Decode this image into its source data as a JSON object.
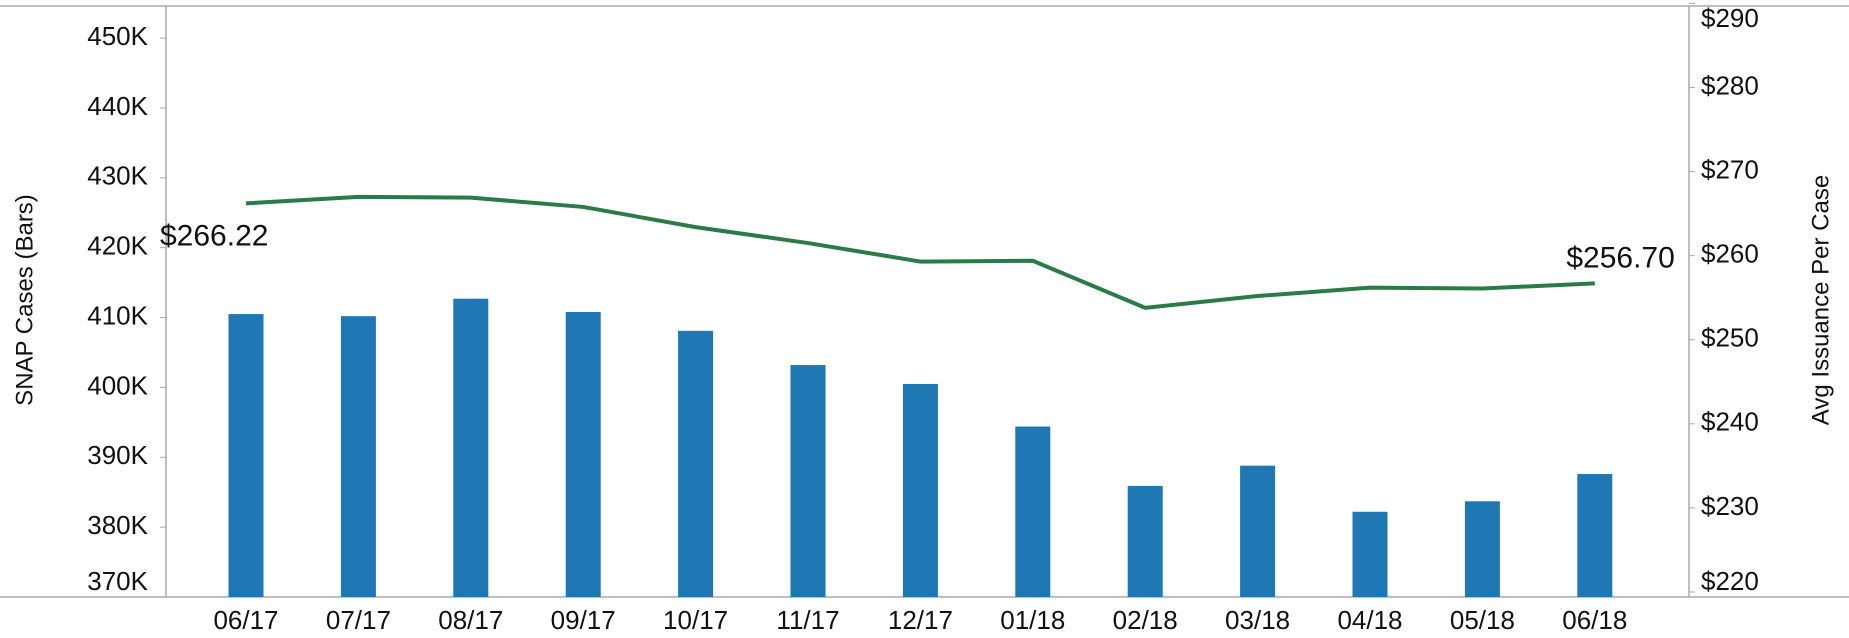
{
  "chart_data": {
    "type": "bar-line",
    "categories": [
      "06/17",
      "07/17",
      "08/17",
      "09/17",
      "10/17",
      "11/17",
      "12/17",
      "01/18",
      "02/18",
      "03/18",
      "04/18",
      "05/18",
      "06/18"
    ],
    "ylabel": "SNAP Cases (Bars)",
    "y2label": "Avg Issuance Per Case",
    "ylim": [
      370000,
      454600
    ],
    "yticks": [
      {
        "value": 370000,
        "label": "370K"
      },
      {
        "value": 380000,
        "label": "380K"
      },
      {
        "value": 390000,
        "label": "390K"
      },
      {
        "value": 400000,
        "label": "400K"
      },
      {
        "value": 410000,
        "label": "410K"
      },
      {
        "value": 420000,
        "label": "420K"
      },
      {
        "value": 430000,
        "label": "430K"
      },
      {
        "value": 440000,
        "label": "440K"
      },
      {
        "value": 450000,
        "label": "450K"
      }
    ],
    "y2lim": [
      219.4,
      289.7
    ],
    "y2ticks": [
      {
        "value": 220,
        "label": "$220"
      },
      {
        "value": 230,
        "label": "$230"
      },
      {
        "value": 240,
        "label": "$240"
      },
      {
        "value": 250,
        "label": "$250"
      },
      {
        "value": 260,
        "label": "$260"
      },
      {
        "value": 270,
        "label": "$270"
      },
      {
        "value": 280,
        "label": "$280"
      },
      {
        "value": 290,
        "label": "$290"
      }
    ],
    "series": [
      {
        "name": "SNAP Cases",
        "type": "bar",
        "color": "#1f77b4",
        "values": [
          410500,
          410200,
          412700,
          410800,
          408100,
          403200,
          400500,
          394400,
          385900,
          388800,
          382200,
          383700,
          387600
        ]
      },
      {
        "name": "Avg Issuance Per Case",
        "type": "line",
        "axis": "y2",
        "color": "#2a7b47",
        "values": [
          266.22,
          267.0,
          266.9,
          265.8,
          263.4,
          261.5,
          259.3,
          259.4,
          253.8,
          255.2,
          256.2,
          256.1,
          256.7
        ],
        "value_labels": [
          "$266.22",
          null,
          null,
          null,
          null,
          null,
          null,
          null,
          null,
          null,
          null,
          null,
          "$256.70"
        ]
      }
    ]
  }
}
